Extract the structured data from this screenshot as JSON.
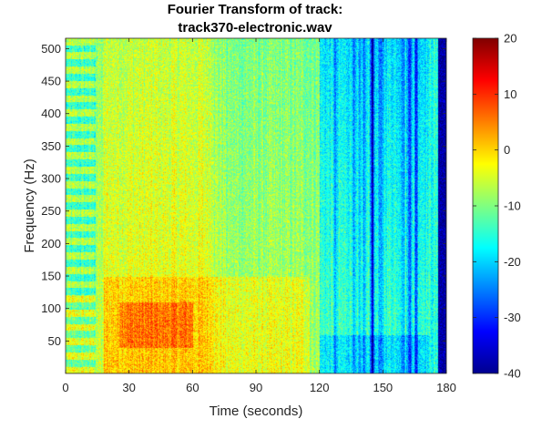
{
  "chart_data": {
    "type": "heatmap",
    "title": [
      "Fourier Transform of track:",
      "track370-electronic.wav"
    ],
    "xlabel": "Time (seconds)",
    "ylabel": "Frequency (Hz)",
    "xlim": [
      0,
      180
    ],
    "ylim": [
      0,
      516
    ],
    "xticks": [
      0,
      30,
      60,
      90,
      120,
      150,
      180
    ],
    "yticks": [
      50,
      100,
      150,
      200,
      250,
      300,
      350,
      400,
      450,
      500
    ],
    "colorbar": {
      "colormap": "jet",
      "clim": [
        -40,
        20
      ],
      "ticks": [
        20,
        10,
        0,
        -10,
        -20,
        -30,
        -40
      ]
    },
    "colors": {
      "jet_low": "#00008f",
      "jet_mid": "#80ff80",
      "jet_high": "#800000"
    }
  }
}
